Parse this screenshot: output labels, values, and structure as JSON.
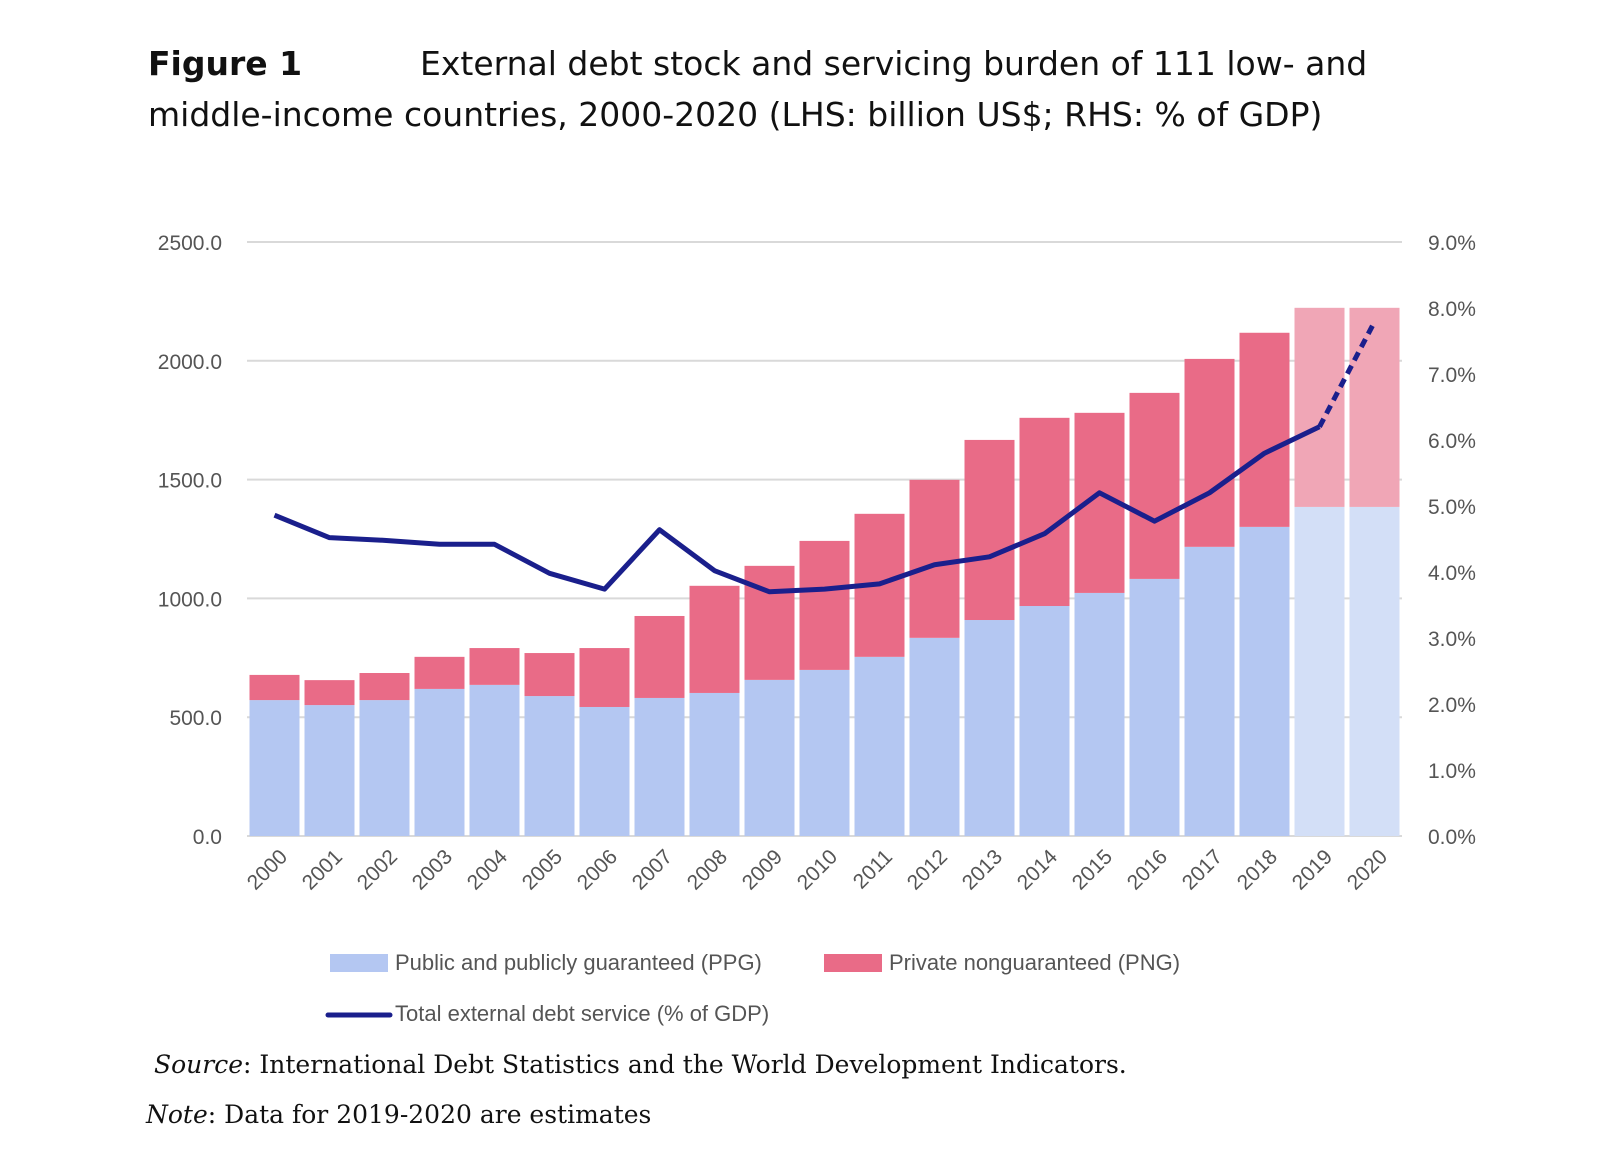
{
  "title": {
    "label": "Figure 1",
    "line1": "External debt stock and servicing burden of 111 low- and",
    "line2": "middle-income countries, 2000-2020 (LHS: billion US$; RHS: % of GDP)"
  },
  "chart_data": {
    "type": "bar",
    "stacked": true,
    "categories": [
      "2000",
      "2001",
      "2002",
      "2003",
      "2004",
      "2005",
      "2006",
      "2007",
      "2008",
      "2009",
      "2010",
      "2011",
      "2012",
      "2013",
      "2014",
      "2015",
      "2016",
      "2017",
      "2018",
      "2019",
      "2020"
    ],
    "series": [
      {
        "name": "Public and publicly guaranteed (PPG)",
        "axis": "left",
        "type": "bar",
        "color": "#b4c7f2",
        "estimate_color": "#d3dff7",
        "values": [
          572,
          551,
          572,
          619,
          636,
          589,
          543,
          581,
          602,
          657,
          699,
          754,
          834,
          909,
          968,
          1023,
          1082,
          1217,
          1301,
          1385,
          1385
        ]
      },
      {
        "name": "Private nonguaranteed (PNG)",
        "axis": "left",
        "type": "bar",
        "color": "#e96b87",
        "estimate_color": "#f0a6b6",
        "values": [
          106,
          105,
          114,
          135,
          155,
          181,
          248,
          345,
          451,
          480,
          543,
          602,
          665,
          758,
          792,
          758,
          783,
          791,
          817,
          838,
          838
        ]
      },
      {
        "name": "Total external debt service (% of GDP)",
        "axis": "right",
        "type": "line",
        "color": "#1a1f8c",
        "values": [
          4.86,
          4.52,
          4.48,
          4.42,
          4.42,
          3.98,
          3.74,
          4.64,
          4.02,
          3.7,
          3.74,
          3.82,
          4.11,
          4.23,
          4.58,
          5.2,
          4.77,
          5.2,
          5.8,
          6.2,
          7.79
        ]
      }
    ],
    "estimate_categories": [
      "2019",
      "2020"
    ],
    "ylim_left": [
      0,
      2500
    ],
    "yticks_left": [
      "0.0",
      "500.0",
      "1000.0",
      "1500.0",
      "2000.0",
      "2500.0"
    ],
    "ylim_right": [
      0,
      9
    ],
    "yticks_right": [
      "0.0%",
      "1.0%",
      "2.0%",
      "3.0%",
      "4.0%",
      "5.0%",
      "6.0%",
      "7.0%",
      "8.0%",
      "9.0%"
    ],
    "grid": true,
    "legend_position": "bottom"
  },
  "source": {
    "label": "Source",
    "text": ": International Debt Statistics and the World Development Indicators."
  },
  "note": {
    "label": "Note",
    "text": ": Data for 2019-2020 are estimates"
  }
}
